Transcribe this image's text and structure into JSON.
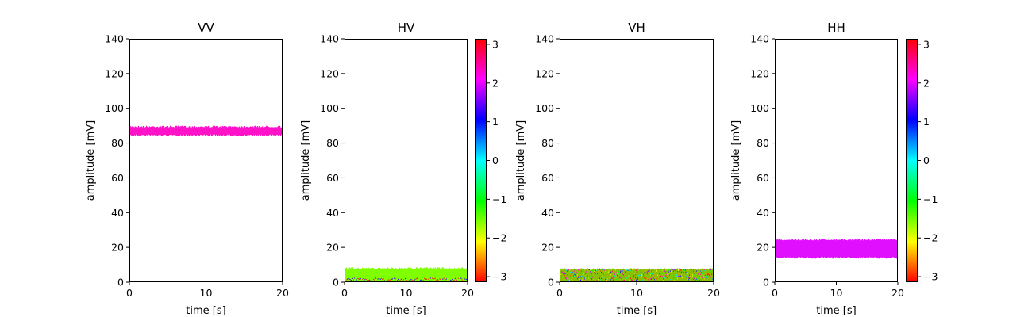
{
  "chart_data": [
    {
      "type": "scatter",
      "title": "VV",
      "xlabel": "time [s]",
      "ylabel": "amplitude [mV]",
      "xlim": [
        0,
        20
      ],
      "ylim": [
        0,
        140
      ],
      "xticks": [
        0,
        10,
        20
      ],
      "yticks": [
        0,
        20,
        40,
        60,
        80,
        100,
        120,
        140
      ],
      "band": {
        "x": [
          0,
          20
        ],
        "y_low": 84.5,
        "y_high": 89.5,
        "dominant_color": "#ff12c8"
      },
      "colorbar": false
    },
    {
      "type": "scatter",
      "title": "HV",
      "xlabel": "time [s]",
      "ylabel": "amplitude [mV]",
      "xlim": [
        0,
        20
      ],
      "ylim": [
        0,
        140
      ],
      "xticks": [
        0,
        10,
        20
      ],
      "yticks": [
        0,
        20,
        40,
        60,
        80,
        100,
        120,
        140
      ],
      "band": {
        "x": [
          0,
          20
        ],
        "y_low": 0.5,
        "y_high": 8,
        "dominant_color": "#7fff00"
      },
      "colorbar": true
    },
    {
      "type": "scatter",
      "title": "VH",
      "xlabel": "time [s]",
      "ylabel": "amplitude [mV]",
      "xlim": [
        0,
        20
      ],
      "ylim": [
        0,
        140
      ],
      "xticks": [
        0,
        10,
        20
      ],
      "yticks": [
        0,
        20,
        40,
        60,
        80,
        100,
        120,
        140
      ],
      "band": {
        "x": [
          0,
          20
        ],
        "y_low": 0,
        "y_high": 7.5,
        "dominant_color": "#8ac000"
      },
      "colorbar": false
    },
    {
      "type": "scatter",
      "title": "HH",
      "xlabel": "time [s]",
      "ylabel": "amplitude [mV]",
      "xlim": [
        0,
        20
      ],
      "ylim": [
        0,
        140
      ],
      "xticks": [
        0,
        10,
        20
      ],
      "yticks": [
        0,
        20,
        40,
        60,
        80,
        100,
        120,
        140
      ],
      "band": {
        "x": [
          0,
          20
        ],
        "y_low": 14,
        "y_high": 24.5,
        "dominant_color": "#e010ff"
      },
      "colorbar": true
    }
  ],
  "colorbar": {
    "range": [
      -3.14159,
      3.14159
    ],
    "ticks": [
      3,
      2,
      1,
      0,
      -1,
      -2,
      -3
    ],
    "tick_labels": [
      "3",
      "2",
      "1",
      "0",
      "−1",
      "−2",
      "−3"
    ],
    "colormap": "hsv"
  }
}
